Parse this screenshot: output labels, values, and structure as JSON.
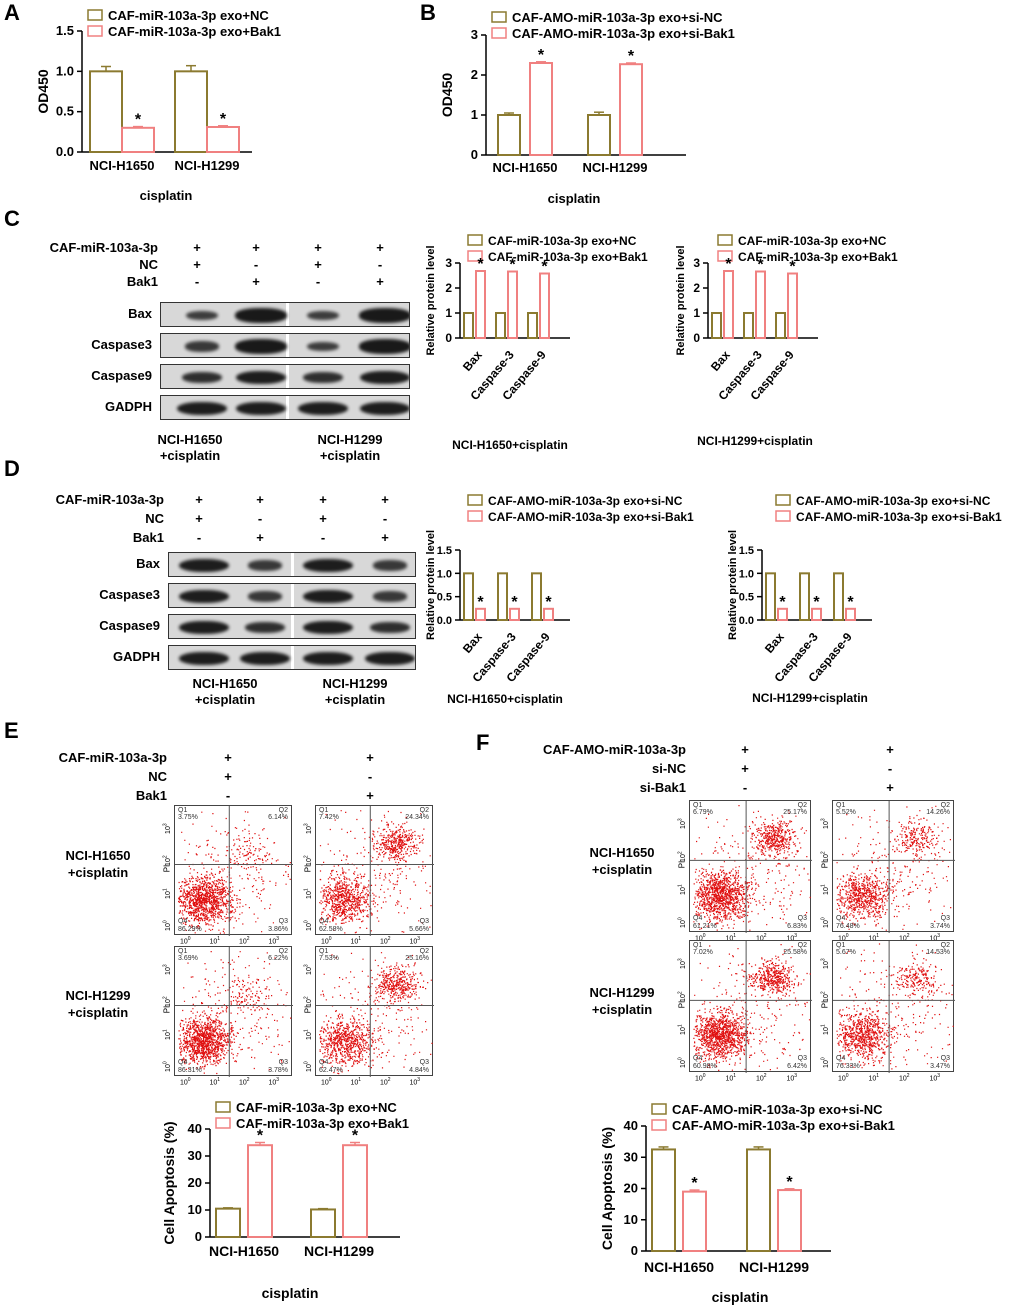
{
  "panel_labels": {
    "A": "A",
    "B": "B",
    "C": "C",
    "D": "D",
    "E": "E",
    "F": "F"
  },
  "colors": {
    "nc": "#8B7A30",
    "trt": "#F08080",
    "dots": "#e01010"
  },
  "chart_data": [
    {
      "id": "A",
      "type": "bar",
      "legend": [
        "CAF-miR-103a-3p exo+NC",
        "CAF-miR-103a-3p exo+Bak1"
      ],
      "categories": [
        "NCI-H1650",
        "NCI-H1299"
      ],
      "series": [
        {
          "name": "CAF-miR-103a-3p exo+NC",
          "values": [
            1.0,
            1.0
          ],
          "err": [
            0.06,
            0.07
          ]
        },
        {
          "name": "CAF-miR-103a-3p exo+Bak1",
          "values": [
            0.3,
            0.31
          ],
          "err": [
            0.015,
            0.015
          ]
        }
      ],
      "sig": [
        "*",
        "*"
      ],
      "ylabel": "OD450",
      "xlabel": "cisplatin",
      "ylim": [
        0,
        1.5
      ],
      "ticks": [
        "0.0",
        "0.5",
        "1.0",
        "1.5"
      ],
      "errorbars": true
    },
    {
      "id": "B",
      "type": "bar",
      "legend": [
        "CAF-AMO-miR-103a-3p exo+si-NC",
        "CAF-AMO-miR-103a-3p exo+si-Bak1"
      ],
      "categories": [
        "NCI-H1650",
        "NCI-H1299"
      ],
      "series": [
        {
          "name": "CAF-AMO-miR-103a-3p exo+si-NC",
          "values": [
            1.0,
            1.0
          ],
          "err": [
            0.05,
            0.07
          ]
        },
        {
          "name": "CAF-AMO-miR-103a-3p exo+si-Bak1",
          "values": [
            2.3,
            2.27
          ],
          "err": [
            0.03,
            0.03
          ]
        }
      ],
      "sig": [
        "*",
        "*"
      ],
      "ylabel": "OD450",
      "xlabel": "cisplatin",
      "ylim": [
        0,
        3
      ],
      "ticks": [
        "0",
        "1",
        "2",
        "3"
      ],
      "errorbars": true
    },
    {
      "id": "C1",
      "type": "bar",
      "legend": [
        "CAF-miR-103a-3p exo+NC",
        "CAF-miR-103a-3p exo+Bak1"
      ],
      "categories": [
        "Bax",
        "Caspase-3",
        "Caspase-9"
      ],
      "series": [
        {
          "name": "CAF-miR-103a-3p exo+NC",
          "values": [
            1,
            1,
            1
          ]
        },
        {
          "name": "CAF-miR-103a-3p exo+Bak1",
          "values": [
            2.68,
            2.66,
            2.58
          ]
        }
      ],
      "sig": [
        "*",
        "*",
        "*"
      ],
      "ylabel": "Relative protein level",
      "xlabel": "NCI-H1650+cisplatin",
      "ylim": [
        0,
        3
      ],
      "ticks": [
        "0",
        "1",
        "2",
        "3"
      ],
      "errorbars": false
    },
    {
      "id": "C2",
      "type": "bar",
      "legend": [
        "CAF-miR-103a-3p exo+NC",
        "CAF-miR-103a-3p exo+Bak1"
      ],
      "categories": [
        "Bax",
        "Caspase-3",
        "Caspase-9"
      ],
      "series": [
        {
          "name": "CAF-miR-103a-3p exo+NC",
          "values": [
            1,
            1,
            1
          ]
        },
        {
          "name": "CAF-miR-103a-3p exo+Bak1",
          "values": [
            2.68,
            2.66,
            2.58
          ]
        }
      ],
      "sig": [
        "*",
        "*",
        "*"
      ],
      "ylabel": "Relative protein level",
      "xlabel": "NCI-H1299+cisplatin",
      "ylim": [
        0,
        3
      ],
      "ticks": [
        "0",
        "1",
        "2",
        "3"
      ],
      "errorbars": false
    },
    {
      "id": "D1",
      "type": "bar",
      "legend": [
        "CAF-AMO-miR-103a-3p exo+si-NC",
        "CAF-AMO-miR-103a-3p exo+si-Bak1"
      ],
      "categories": [
        "Bax",
        "Caspase-3",
        "Caspase-9"
      ],
      "series": [
        {
          "name": "CAF-AMO-miR-103a-3p exo+si-NC",
          "values": [
            1,
            1,
            1
          ]
        },
        {
          "name": "CAF-AMO-miR-103a-3p exo+si-Bak1",
          "values": [
            0.24,
            0.24,
            0.24
          ]
        }
      ],
      "sig": [
        "*",
        "*",
        "*"
      ],
      "ylabel": "Relative protein level",
      "xlabel": "NCI-H1650+cisplatin",
      "ylim": [
        0,
        1.5
      ],
      "ticks": [
        "0.0",
        "0.5",
        "1.0",
        "1.5"
      ],
      "errorbars": false
    },
    {
      "id": "D2",
      "type": "bar",
      "legend": [
        "CAF-AMO-miR-103a-3p exo+si-NC",
        "CAF-AMO-miR-103a-3p exo+si-Bak1"
      ],
      "categories": [
        "Bax",
        "Caspase-3",
        "Caspase-9"
      ],
      "series": [
        {
          "name": "CAF-AMO-miR-103a-3p exo+si-NC",
          "values": [
            1,
            1,
            1
          ]
        },
        {
          "name": "CAF-AMO-miR-103a-3p exo+si-Bak1",
          "values": [
            0.24,
            0.24,
            0.24
          ]
        }
      ],
      "sig": [
        "*",
        "*",
        "*"
      ],
      "ylabel": "Relative protein level",
      "xlabel": "NCI-H1299+cisplatin",
      "ylim": [
        0,
        1.5
      ],
      "ticks": [
        "0.0",
        "0.5",
        "1.0",
        "1.5"
      ],
      "errorbars": false
    },
    {
      "id": "E",
      "type": "bar",
      "legend": [
        "CAF-miR-103a-3p exo+NC",
        "CAF-miR-103a-3p exo+Bak1"
      ],
      "categories": [
        "NCI-H1650",
        "NCI-H1299"
      ],
      "series": [
        {
          "name": "CAF-miR-103a-3p exo+NC",
          "values": [
            10.5,
            10.2
          ],
          "err": [
            0.3,
            0.3
          ]
        },
        {
          "name": "CAF-miR-103a-3p exo+Bak1",
          "values": [
            34,
            34
          ],
          "err": [
            1.0,
            1.0
          ]
        }
      ],
      "sig": [
        "*",
        "*"
      ],
      "ylabel": "Cell Apoptosis (%)",
      "xlabel": "cisplatin",
      "ylim": [
        0,
        40
      ],
      "ticks": [
        "0",
        "10",
        "20",
        "30",
        "40"
      ],
      "errorbars": true
    },
    {
      "id": "F",
      "type": "bar",
      "legend": [
        "CAF-AMO-miR-103a-3p exo+si-NC",
        "CAF-AMO-miR-103a-3p exo+si-Bak1"
      ],
      "categories": [
        "NCI-H1650",
        "NCI-H1299"
      ],
      "series": [
        {
          "name": "CAF-AMO-miR-103a-3p exo+si-NC",
          "values": [
            32.5,
            32.5
          ],
          "err": [
            0.8,
            0.8
          ]
        },
        {
          "name": "CAF-AMO-miR-103a-3p exo+si-Bak1",
          "values": [
            19,
            19.5
          ],
          "err": [
            0.5,
            0.4
          ]
        }
      ],
      "sig": [
        "*",
        "*"
      ],
      "ylabel": "Cell Apoptosis (%)",
      "xlabel": "cisplatin",
      "ylim": [
        0,
        40
      ],
      "ticks": [
        "0",
        "10",
        "20",
        "30",
        "40"
      ],
      "errorbars": true
    }
  ],
  "western": {
    "C": {
      "rows": [
        "CAF-miR-103a-3p",
        "NC",
        "Bak1"
      ],
      "signs": [
        [
          "+",
          "+",
          "+",
          "+"
        ],
        [
          "+",
          "-",
          "+",
          "-"
        ],
        [
          "-",
          "+",
          "-",
          "+"
        ]
      ],
      "blots": [
        "Bax",
        "Caspase3",
        "Caspase9",
        "GADPH"
      ],
      "cells": [
        "NCI-H1650\n+cisplatin",
        "NCI-H1299\n+cisplatin"
      ]
    },
    "D": {
      "rows": [
        "CAF-miR-103a-3p",
        "NC",
        "Bak1"
      ],
      "signs": [
        [
          "+",
          "+",
          "+",
          "+"
        ],
        [
          "+",
          "-",
          "+",
          "-"
        ],
        [
          "-",
          "+",
          "-",
          "+"
        ]
      ],
      "blots": [
        "Bax",
        "Caspase3",
        "Caspase9",
        "GADPH"
      ],
      "cells": [
        "NCI-H1650\n+cisplatin",
        "NCI-H1299\n+cisplatin"
      ]
    }
  },
  "flow": {
    "E": {
      "rows": [
        "CAF-miR-103a-3p",
        "NC",
        "Bak1"
      ],
      "signs": [
        [
          "+",
          "+"
        ],
        [
          "+",
          "-"
        ],
        [
          "-",
          "+"
        ]
      ],
      "cells": [
        "NCI-H1650\n+cisplatin",
        "NCI-H1299\n+cisplatin"
      ],
      "plots": [
        {
          "q1": "3.75%",
          "q2": "6.14%",
          "q3": "3.86%",
          "q4": "86.29%"
        },
        {
          "q1": "7.42%",
          "q2": "24.34%",
          "q3": "5.66%",
          "q4": "62.58%"
        },
        {
          "q1": "3.69%",
          "q2": "6.22%",
          "q3": "3.78%",
          "q4": "86.31%"
        },
        {
          "q1": "7.53%",
          "q2": "25.16%",
          "q3": "4.84%",
          "q4": "62.47%"
        }
      ]
    },
    "F": {
      "rows": [
        "CAF-AMO-miR-103a-3p",
        "si-NC",
        "si-Bak1"
      ],
      "signs": [
        [
          "+",
          "+"
        ],
        [
          "+",
          "-"
        ],
        [
          "-",
          "+"
        ]
      ],
      "cells": [
        "NCI-H1650\n+cisplatin",
        "NCI-H1299\n+cisplatin"
      ],
      "plots": [
        {
          "q1": "6.79%",
          "q2": "25.17%",
          "q3": "6.83%",
          "q4": "61.21%"
        },
        {
          "q1": "5.52%",
          "q2": "14.26%",
          "q3": "3.74%",
          "q4": "76.48%"
        },
        {
          "q1": "7.02%",
          "q2": "25.58%",
          "q3": "6.42%",
          "q4": "60.98%"
        },
        {
          "q1": "5.67%",
          "q2": "14.53%",
          "q3": "3.47%",
          "q4": "76.33%"
        }
      ]
    }
  },
  "flow_axis": {
    "ylabel": "PI",
    "tick0": "10",
    "e0": "0",
    "e1": "1",
    "e2": "2",
    "e3": "3",
    "q1": "Q1",
    "q2": "Q2",
    "q3": "Q3",
    "q4": "Q4"
  }
}
